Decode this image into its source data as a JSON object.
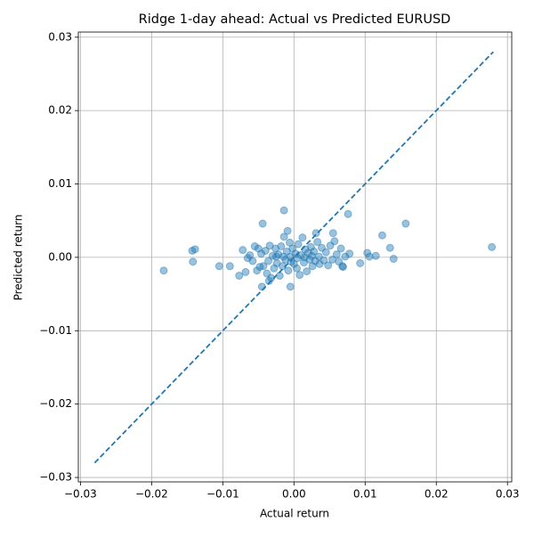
{
  "chart_data": {
    "type": "scatter",
    "title": "Ridge 1-day ahead: Actual vs Predicted EURUSD",
    "x_label": "Actual return",
    "y_label": "Predicted return",
    "grid": true,
    "xlim": [
      -0.0303,
      0.0306
    ],
    "ylim": [
      -0.0306,
      0.0307
    ],
    "xticks": [
      {
        "value": -0.03,
        "label": "−0.03"
      },
      {
        "value": -0.02,
        "label": "−0.02"
      },
      {
        "value": -0.01,
        "label": "−0.01"
      },
      {
        "value": 0,
        "label": "0.00"
      },
      0.01,
      0.02,
      0.03
    ],
    "yticks": [
      {
        "value": -0.03,
        "label": "−0.03"
      },
      {
        "value": -0.02,
        "label": "−0.02"
      },
      {
        "value": -0.01,
        "label": "−0.01"
      },
      {
        "value": 0,
        "label": "0.00"
      },
      0.01,
      0.02,
      0.03
    ],
    "reference_line": {
      "x": [
        -0.028,
        0.028
      ],
      "y": [
        -0.028,
        0.028
      ],
      "color": "#1f77b4"
    },
    "series": [
      {
        "color": "#1f77b4",
        "x": [
          -0.0183,
          -0.0143,
          -0.0139,
          -0.0142,
          -0.0105,
          -0.009,
          -0.0077,
          -0.0072,
          -0.0068,
          -0.0044,
          -0.0014,
          -0.0045,
          -0.0005,
          0.0076,
          0.0055,
          0.0031,
          0.0103,
          0.0106,
          0.0115,
          0.0124,
          0.0135,
          0.014,
          0.0157,
          0.0278,
          0.0093,
          0.0078,
          0.0068,
          -0.0055,
          -0.005,
          -0.0052,
          -0.0048,
          -0.0046,
          -0.0043,
          -0.004,
          -0.0038,
          -0.0036,
          -0.0034,
          -0.0032,
          -0.003,
          -0.0028,
          -0.0026,
          -0.0024,
          -0.0022,
          -0.002,
          -0.0018,
          -0.0016,
          -0.0014,
          -0.0012,
          -0.001,
          -0.0009,
          -0.0008,
          -0.0006,
          -0.0004,
          -0.0002,
          0,
          0.0002,
          0.0004,
          0.0006,
          0.0008,
          0.001,
          0.0012,
          0.0014,
          0.0016,
          0.0018,
          0.002,
          0.0022,
          0.0024,
          0.0026,
          0.0028,
          0.003,
          0.0033,
          0.0036,
          0.0039,
          0.0042,
          0.0045,
          0.0048,
          0.0051,
          0.0054,
          0.0057,
          0.006,
          0.0063,
          0.0066,
          0.0069,
          0.0072,
          -0.0062,
          -0.0058,
          -0.0065,
          -0.0035,
          -0.0025,
          -0.0015,
          -0.0005,
          0.0005,
          0.0015,
          0.0025,
          0.0035
        ],
        "y": [
          -0.0018,
          0.0009,
          0.0011,
          -0.0006,
          -0.0012,
          -0.0012,
          -0.0025,
          0.001,
          -0.002,
          0.0046,
          0.0064,
          -0.004,
          -0.004,
          0.0059,
          0.0033,
          0.0033,
          0.0006,
          0.0001,
          0.0002,
          0.003,
          0.0013,
          -0.0002,
          0.0046,
          0.0014,
          -0.0008,
          0.0005,
          -0.0012,
          0.0015,
          0.0012,
          -0.0018,
          -0.0013,
          0.0005,
          -0.0012,
          0.0009,
          -0.0022,
          -0.0005,
          0.0016,
          -0.0028,
          0.0002,
          -0.0015,
          0.0012,
          -0.0008,
          0.0004,
          -0.0025,
          0.0015,
          -0.0012,
          0.0028,
          -0.0003,
          0.0008,
          0.0036,
          -0.0018,
          0.002,
          -0.0006,
          0.0012,
          -0.0009,
          0.0005,
          -0.0015,
          0.0018,
          -0.0024,
          0.0003,
          0.0027,
          -0.0007,
          0.0011,
          -0.0019,
          0.0006,
          -0.0003,
          0.0014,
          -0.0012,
          0.0008,
          -0.0005,
          0.0021,
          -0.0009,
          0.0013,
          -0.0004,
          0.0007,
          -0.0011,
          0.0016,
          -0.0003,
          0.0022,
          0.0004,
          -0.0006,
          0.0012,
          -0.0013,
          0.0001,
          0.0003,
          -0.0005,
          -0.0001,
          -0.0032,
          0.0001,
          0.0001,
          0.0001,
          -0.0001,
          0,
          0.0002,
          0.0001
        ]
      }
    ]
  }
}
